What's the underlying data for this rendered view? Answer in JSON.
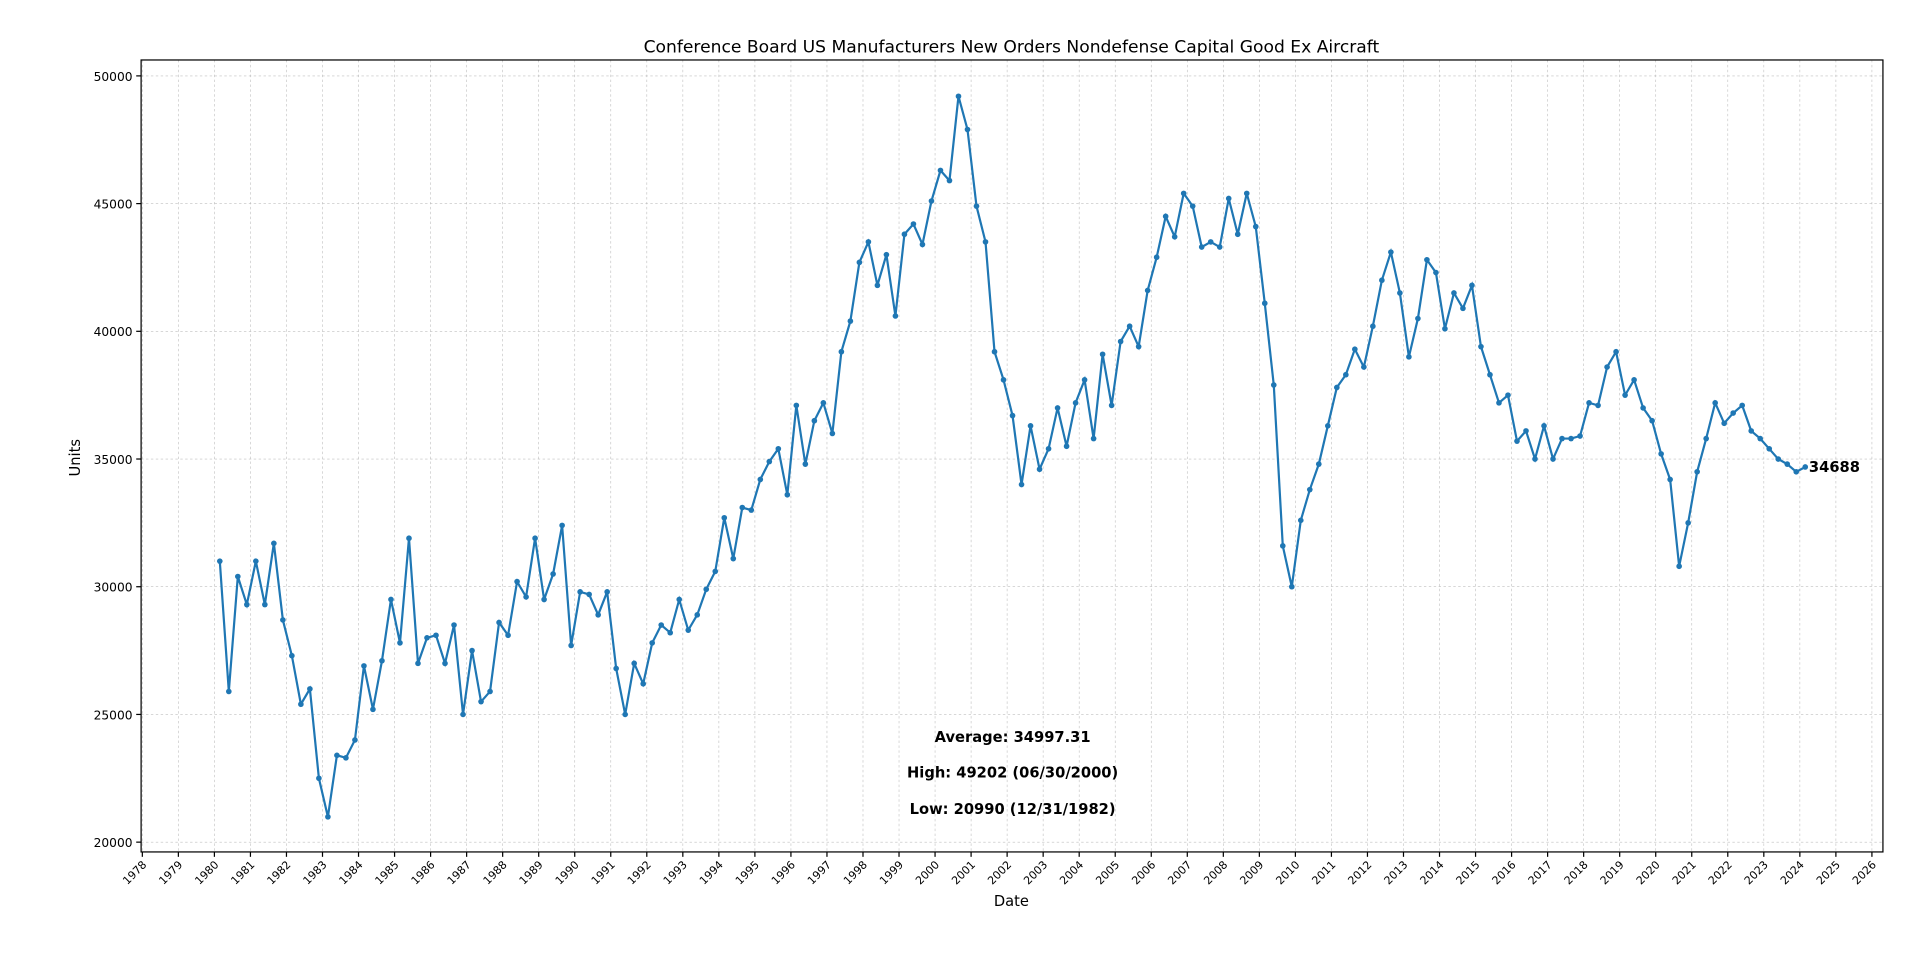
{
  "chart_data": {
    "type": "line",
    "title": "Conference Board US Manufacturers New Orders Nondefense Capital Good Ex Aircraft",
    "xlabel": "Date",
    "ylabel": "Units",
    "xlim": [
      1978,
      2026
    ],
    "ylim": [
      19600,
      50600
    ],
    "yticks": [
      20000,
      25000,
      30000,
      35000,
      40000,
      45000,
      50000
    ],
    "xticks": [
      "1978",
      "1979",
      "1980",
      "1981",
      "1982",
      "1983",
      "1984",
      "1985",
      "1986",
      "1987",
      "1988",
      "1989",
      "1990",
      "1991",
      "1992",
      "1993",
      "1994",
      "1995",
      "1996",
      "1997",
      "1998",
      "1999",
      "2000",
      "2001",
      "2002",
      "2003",
      "2004",
      "2005",
      "2006",
      "2007",
      "2008",
      "2009",
      "2010",
      "2011",
      "2012",
      "2013",
      "2014",
      "2015",
      "2016",
      "2017",
      "2018",
      "2019",
      "2020",
      "2021",
      "2022",
      "2023",
      "2024",
      "2025",
      "2026"
    ],
    "grid": true,
    "color": "#1f77b4",
    "series": [
      {
        "name": "New Orders",
        "start_year": 1980.15,
        "step_years": 0.25,
        "values": [
          31000,
          25900,
          30400,
          29300,
          31000,
          29300,
          31700,
          28700,
          27300,
          25400,
          26000,
          22500,
          20990,
          23400,
          23300,
          24000,
          26900,
          25200,
          27100,
          29500,
          27800,
          31900,
          27000,
          28000,
          28100,
          27000,
          28500,
          25000,
          27500,
          25500,
          25900,
          28600,
          28100,
          30200,
          29600,
          31900,
          29500,
          30500,
          32400,
          27700,
          29800,
          29700,
          28900,
          29800,
          26800,
          25000,
          27000,
          26200,
          27800,
          28500,
          28200,
          29500,
          28300,
          28900,
          29900,
          30600,
          32700,
          31100,
          33100,
          33000,
          34200,
          34900,
          35400,
          33600,
          37100,
          34800,
          36500,
          37200,
          36000,
          39200,
          40400,
          42700,
          43500,
          41800,
          43000,
          40600,
          43800,
          44200,
          43400,
          45100,
          46300,
          45900,
          49202,
          47900,
          44900,
          43500,
          39200,
          38100,
          36700,
          34000,
          36300,
          34600,
          35400,
          37000,
          35500,
          37200,
          38100,
          35800,
          39100,
          37100,
          39600,
          40200,
          39400,
          41600,
          42900,
          44500,
          43700,
          45400,
          44900,
          43300,
          43500,
          43300,
          45200,
          43800,
          45400,
          44100,
          41100,
          37900,
          31600,
          30000,
          32600,
          33800,
          34800,
          36300,
          37800,
          38300,
          39300,
          38600,
          40200,
          42000,
          43100,
          41500,
          39000,
          40500,
          42800,
          42300,
          40100,
          41500,
          40900,
          41800,
          39400,
          38300,
          37200,
          37500,
          35700,
          36100,
          35000,
          36300,
          35000,
          35800,
          35800,
          35900,
          37200,
          37100,
          38600,
          39200,
          37500,
          38100,
          37000,
          36500,
          35200,
          34200,
          30800,
          32500,
          34500,
          35800,
          37200,
          36400,
          36800,
          37100,
          36100,
          35800,
          35400,
          35000,
          34800,
          34500,
          34688
        ]
      }
    ],
    "last_value_label": "34688",
    "annotations": [
      "Average: 34997.31",
      "High: 49202 (06/30/2000)",
      "Low: 20990 (12/31/1982)"
    ]
  }
}
